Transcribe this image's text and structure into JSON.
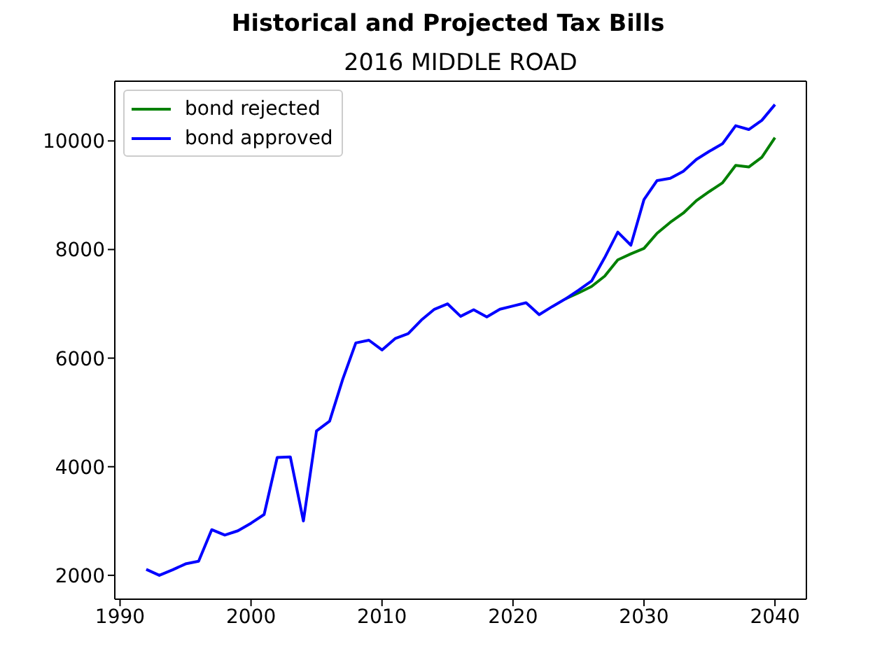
{
  "chart_data": {
    "type": "line",
    "title": "Historical and Projected Tax Bills",
    "subtitle": "2016 MIDDLE ROAD",
    "x": [
      1992,
      1993,
      1994,
      1995,
      1996,
      1997,
      1998,
      1999,
      2000,
      2001,
      2002,
      2003,
      2004,
      2005,
      2006,
      2007,
      2008,
      2009,
      2010,
      2011,
      2012,
      2013,
      2014,
      2015,
      2016,
      2017,
      2018,
      2019,
      2020,
      2021,
      2022,
      2023,
      2024,
      2025,
      2026,
      2027,
      2028,
      2029,
      2030,
      2031,
      2032,
      2033,
      2034,
      2035,
      2036,
      2037,
      2038,
      2039,
      2040
    ],
    "series": [
      {
        "name": "bond rejected",
        "color": "#008000",
        "values": [
          null,
          null,
          null,
          null,
          null,
          null,
          null,
          null,
          null,
          null,
          null,
          null,
          null,
          null,
          null,
          null,
          null,
          null,
          null,
          null,
          null,
          null,
          null,
          null,
          null,
          null,
          null,
          null,
          null,
          null,
          null,
          null,
          7090,
          7200,
          7320,
          7510,
          7810,
          7920,
          8020,
          8300,
          8500,
          8670,
          8900,
          9070,
          9230,
          9550,
          9520,
          9700,
          10060
        ]
      },
      {
        "name": "bond approved",
        "color": "#0000ff",
        "values": [
          2110,
          2000,
          2100,
          2210,
          2260,
          2840,
          2740,
          2820,
          2960,
          3120,
          4170,
          4180,
          3000,
          4660,
          4840,
          5610,
          6280,
          6330,
          6150,
          6360,
          6450,
          6700,
          6900,
          7000,
          6770,
          6890,
          6760,
          6900,
          6960,
          7020,
          6800,
          6950,
          7090,
          7250,
          7420,
          7850,
          8320,
          8080,
          8920,
          9270,
          9310,
          9440,
          9660,
          9810,
          9950,
          10280,
          10210,
          10380,
          10670
        ]
      }
    ],
    "xlim": [
      1989.6,
      2042.4
    ],
    "xticks": [
      1990,
      2000,
      2010,
      2020,
      2030,
      2040
    ],
    "ylim": [
      1560,
      11100
    ],
    "yticks": [
      2000,
      4000,
      6000,
      8000,
      10000
    ],
    "legend": "top left",
    "marker": "none",
    "line_style": "solid"
  }
}
